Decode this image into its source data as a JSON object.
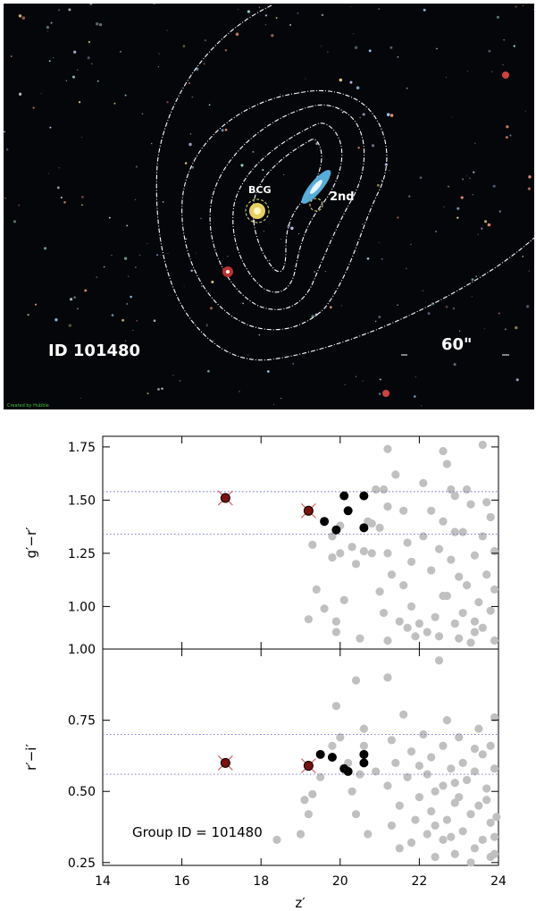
{
  "image_panel": {
    "id_label": "ID 101480",
    "scale_label": "60\"",
    "bcg_label": "BCG",
    "second_label": "2nd",
    "credit_text": "Created by Hubble",
    "colors": {
      "sky": "#05060a",
      "contour": "#ffffff",
      "bcg_circle": "#e8e070",
      "label": "#ffffff"
    }
  },
  "chart_data": [
    {
      "type": "scatter",
      "title": "",
      "xlabel": "",
      "ylabel": "g′−r′",
      "xlim": [
        14,
        24
      ],
      "ylim": [
        0.8,
        1.8
      ],
      "yticks": [
        "1.00",
        "1.25",
        "1.50",
        "1.75"
      ],
      "hlines": [
        1.34,
        1.54
      ],
      "grid": false,
      "series": [
        {
          "role": "field",
          "color": "#c0c0c0",
          "points": [
            [
              19.2,
              0.94
            ],
            [
              19.4,
              1.08
            ],
            [
              19.6,
              0.99
            ],
            [
              19.9,
              0.93
            ],
            [
              19.9,
              0.88
            ],
            [
              20.1,
              1.03
            ],
            [
              20.0,
              1.25
            ],
            [
              19.8,
              1.23
            ],
            [
              19.3,
              1.29
            ],
            [
              19.8,
              1.33
            ],
            [
              20.0,
              1.38
            ],
            [
              20.3,
              1.28
            ],
            [
              20.4,
              1.2
            ],
            [
              20.6,
              1.26
            ],
            [
              20.5,
              0.85
            ],
            [
              20.8,
              1.39
            ],
            [
              20.8,
              1.25
            ],
            [
              20.9,
              1.55
            ],
            [
              20.7,
              1.4
            ],
            [
              21.2,
              1.74
            ],
            [
              21.1,
              1.55
            ],
            [
              21.2,
              1.47
            ],
            [
              21.0,
              1.37
            ],
            [
              21.2,
              1.25
            ],
            [
              21.3,
              1.15
            ],
            [
              21.0,
              1.07
            ],
            [
              21.1,
              0.97
            ],
            [
              21.5,
              0.93
            ],
            [
              21.2,
              0.84
            ],
            [
              21.4,
              1.62
            ],
            [
              21.6,
              1.45
            ],
            [
              21.7,
              1.3
            ],
            [
              21.8,
              1.21
            ],
            [
              21.6,
              1.1
            ],
            [
              21.8,
              1.0
            ],
            [
              22.0,
              0.92
            ],
            [
              21.9,
              0.86
            ],
            [
              22.1,
              1.58
            ],
            [
              22.3,
              1.45
            ],
            [
              22.1,
              1.33
            ],
            [
              22.5,
              1.27
            ],
            [
              22.3,
              1.17
            ],
            [
              22.6,
              1.05
            ],
            [
              22.4,
              0.95
            ],
            [
              22.5,
              0.86
            ],
            [
              22.6,
              1.73
            ],
            [
              22.7,
              1.67
            ],
            [
              22.8,
              1.55
            ],
            [
              22.9,
              1.52
            ],
            [
              22.6,
              1.4
            ],
            [
              22.9,
              1.35
            ],
            [
              22.8,
              1.22
            ],
            [
              23.0,
              1.14
            ],
            [
              22.7,
              1.05
            ],
            [
              23.1,
              0.97
            ],
            [
              22.9,
              0.92
            ],
            [
              23.0,
              0.85
            ],
            [
              23.2,
              1.55
            ],
            [
              23.3,
              1.48
            ],
            [
              23.1,
              1.35
            ],
            [
              23.4,
              1.24
            ],
            [
              23.2,
              1.1
            ],
            [
              23.5,
              1.02
            ],
            [
              23.4,
              0.93
            ],
            [
              23.3,
              0.83
            ],
            [
              23.6,
              1.76
            ],
            [
              23.7,
              1.49
            ],
            [
              23.8,
              1.42
            ],
            [
              23.6,
              1.33
            ],
            [
              23.9,
              1.26
            ],
            [
              23.7,
              1.15
            ],
            [
              23.9,
              1.08
            ],
            [
              23.8,
              0.98
            ],
            [
              23.6,
              0.9
            ],
            [
              23.9,
              0.84
            ],
            [
              23.4,
              0.88
            ],
            [
              22.2,
              0.88
            ],
            [
              21.7,
              0.9
            ]
          ]
        },
        {
          "role": "members",
          "color": "#000000",
          "points": [
            [
              19.6,
              1.4
            ],
            [
              19.9,
              1.36
            ],
            [
              20.1,
              1.52
            ],
            [
              20.2,
              1.45
            ],
            [
              20.6,
              1.52
            ],
            [
              20.6,
              1.37
            ]
          ]
        },
        {
          "role": "bcg-and-second",
          "color": "#7a1010",
          "marker": "circle-with-cross",
          "points": [
            [
              17.1,
              1.51
            ],
            [
              19.2,
              1.45
            ]
          ]
        }
      ]
    },
    {
      "type": "scatter",
      "title": "",
      "xlabel": "z′",
      "ylabel": "r′−i′",
      "xlim": [
        14,
        24
      ],
      "ylim": [
        0.24,
        1.0
      ],
      "xticks": [
        "14",
        "16",
        "18",
        "20",
        "22",
        "24"
      ],
      "yticks": [
        "0.25",
        "0.50",
        "0.75",
        "1.00"
      ],
      "hlines": [
        0.56,
        0.7
      ],
      "grid": false,
      "annotation": "Group ID = 101480",
      "series": [
        {
          "role": "field",
          "color": "#c0c0c0",
          "points": [
            [
              18.4,
              0.33
            ],
            [
              19.0,
              0.35
            ],
            [
              19.1,
              0.47
            ],
            [
              19.3,
              0.49
            ],
            [
              19.2,
              0.42
            ],
            [
              19.5,
              0.55
            ],
            [
              19.9,
              0.8
            ],
            [
              19.8,
              0.66
            ],
            [
              20.0,
              0.69
            ],
            [
              20.2,
              0.6
            ],
            [
              20.3,
              0.5
            ],
            [
              20.5,
              0.56
            ],
            [
              20.6,
              0.66
            ],
            [
              20.4,
              0.42
            ],
            [
              20.7,
              0.35
            ],
            [
              20.4,
              0.89
            ],
            [
              20.6,
              0.72
            ],
            [
              20.9,
              0.57
            ],
            [
              21.2,
              0.9
            ],
            [
              21.3,
              0.68
            ],
            [
              21.4,
              0.6
            ],
            [
              21.2,
              0.52
            ],
            [
              21.5,
              0.45
            ],
            [
              21.3,
              0.38
            ],
            [
              21.5,
              0.3
            ],
            [
              21.6,
              0.77
            ],
            [
              21.8,
              0.64
            ],
            [
              21.7,
              0.55
            ],
            [
              22.0,
              0.48
            ],
            [
              21.9,
              0.4
            ],
            [
              21.8,
              0.32
            ],
            [
              22.1,
              0.7
            ],
            [
              22.3,
              0.62
            ],
            [
              22.2,
              0.56
            ],
            [
              22.4,
              0.5
            ],
            [
              22.3,
              0.43
            ],
            [
              22.2,
              0.35
            ],
            [
              22.4,
              0.27
            ],
            [
              22.5,
              0.96
            ],
            [
              22.7,
              0.75
            ],
            [
              22.6,
              0.66
            ],
            [
              22.8,
              0.58
            ],
            [
              22.6,
              0.52
            ],
            [
              22.9,
              0.46
            ],
            [
              22.7,
              0.4
            ],
            [
              22.8,
              0.34
            ],
            [
              22.9,
              0.28
            ],
            [
              23.0,
              0.69
            ],
            [
              23.1,
              0.6
            ],
            [
              23.2,
              0.54
            ],
            [
              23.0,
              0.48
            ],
            [
              23.3,
              0.42
            ],
            [
              23.1,
              0.36
            ],
            [
              23.4,
              0.3
            ],
            [
              23.3,
              0.25
            ],
            [
              23.5,
              0.72
            ],
            [
              23.6,
              0.63
            ],
            [
              23.4,
              0.57
            ],
            [
              23.7,
              0.51
            ],
            [
              23.5,
              0.45
            ],
            [
              23.8,
              0.39
            ],
            [
              23.6,
              0.33
            ],
            [
              23.8,
              0.27
            ],
            [
              23.9,
              0.76
            ],
            [
              23.8,
              0.66
            ],
            [
              23.9,
              0.58
            ],
            [
              23.7,
              0.47
            ],
            [
              23.95,
              0.41
            ],
            [
              23.9,
              0.34
            ],
            [
              23.9,
              0.28
            ],
            [
              22.6,
              0.33
            ],
            [
              22.4,
              0.38
            ],
            [
              22.0,
              0.59
            ],
            [
              22.9,
              0.53
            ],
            [
              23.4,
              0.65
            ]
          ]
        },
        {
          "role": "members",
          "color": "#000000",
          "points": [
            [
              19.5,
              0.63
            ],
            [
              19.8,
              0.62
            ],
            [
              20.1,
              0.58
            ],
            [
              20.2,
              0.57
            ],
            [
              20.6,
              0.63
            ],
            [
              20.6,
              0.6
            ]
          ]
        },
        {
          "role": "bcg-and-second",
          "color": "#7a1010",
          "marker": "circle-with-cross",
          "points": [
            [
              17.1,
              0.6
            ],
            [
              19.2,
              0.59
            ]
          ]
        }
      ]
    }
  ]
}
